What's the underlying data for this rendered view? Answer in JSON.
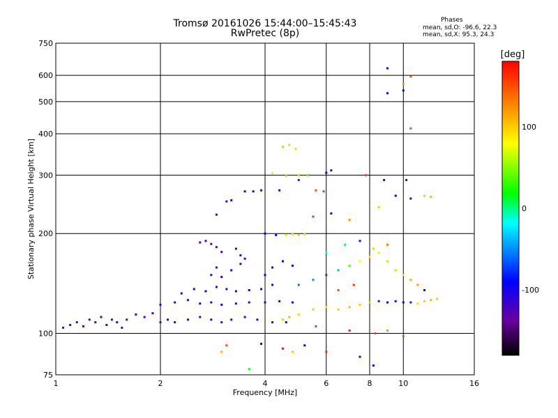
{
  "chart_data": {
    "type": "scatter",
    "title": "Tromsø 20161026 15:44:00–15:45:43",
    "subtitle": "RwPretec (8p)",
    "xlabel": "Frequency [MHz]",
    "ylabel": "Stationary phase Virtual Height [km]",
    "xscale": "log",
    "yscale": "log",
    "xlim": [
      1,
      16
    ],
    "ylim": [
      75,
      750
    ],
    "xticks": [
      1,
      2,
      4,
      6,
      8,
      10,
      16
    ],
    "yticks": [
      75,
      100,
      200,
      300,
      400,
      500,
      600,
      750
    ],
    "grid": true,
    "phase_stats": {
      "title": "Phases",
      "o": "mean, sd,O: -96.6, 22.3",
      "x": "mean, sd,X:  95.3, 24.3"
    },
    "colorbar": {
      "label": "[deg]",
      "range": [
        -180,
        180
      ],
      "ticks": [
        100,
        0,
        -100
      ],
      "colormap": [
        "#000000",
        "#6a00a0",
        "#0000ff",
        "#00ffff",
        "#00ff00",
        "#ffff00",
        "#ff8000",
        "#ff0000"
      ]
    },
    "series": [
      {
        "values": [
          {
            "x": 1.05,
            "y": 104,
            "phase": -125
          },
          {
            "x": 1.1,
            "y": 106,
            "phase": -125
          },
          {
            "x": 1.15,
            "y": 108,
            "phase": -122
          },
          {
            "x": 1.2,
            "y": 105,
            "phase": -125
          },
          {
            "x": 1.25,
            "y": 110,
            "phase": -125
          },
          {
            "x": 1.3,
            "y": 108,
            "phase": -120
          },
          {
            "x": 1.35,
            "y": 112,
            "phase": -125
          },
          {
            "x": 1.4,
            "y": 106,
            "phase": -122
          },
          {
            "x": 1.45,
            "y": 110,
            "phase": -125
          },
          {
            "x": 1.5,
            "y": 108,
            "phase": -120
          },
          {
            "x": 1.55,
            "y": 104,
            "phase": -122
          },
          {
            "x": 1.6,
            "y": 110,
            "phase": -125
          },
          {
            "x": 1.7,
            "y": 114,
            "phase": -120
          },
          {
            "x": 1.8,
            "y": 112,
            "phase": -122
          },
          {
            "x": 1.9,
            "y": 115,
            "phase": -115
          },
          {
            "x": 2.0,
            "y": 108,
            "phase": -120
          },
          {
            "x": 2.1,
            "y": 110,
            "phase": -120
          },
          {
            "x": 2.2,
            "y": 108,
            "phase": -118
          },
          {
            "x": 2.4,
            "y": 110,
            "phase": -118
          },
          {
            "x": 2.6,
            "y": 112,
            "phase": -115
          },
          {
            "x": 2.8,
            "y": 110,
            "phase": -112
          },
          {
            "x": 3.0,
            "y": 108,
            "phase": -115
          },
          {
            "x": 3.2,
            "y": 110,
            "phase": -112
          },
          {
            "x": 3.5,
            "y": 112,
            "phase": -110
          },
          {
            "x": 3.8,
            "y": 110,
            "phase": -108
          },
          {
            "x": 4.2,
            "y": 108,
            "phase": -105
          },
          {
            "x": 4.6,
            "y": 108,
            "phase": -100
          },
          {
            "x": 2.0,
            "y": 122,
            "phase": -115
          },
          {
            "x": 2.2,
            "y": 124,
            "phase": -110
          },
          {
            "x": 2.4,
            "y": 126,
            "phase": -108
          },
          {
            "x": 2.6,
            "y": 123,
            "phase": -105
          },
          {
            "x": 2.8,
            "y": 124,
            "phase": -110
          },
          {
            "x": 3.0,
            "y": 122,
            "phase": -105
          },
          {
            "x": 3.3,
            "y": 123,
            "phase": -108
          },
          {
            "x": 3.6,
            "y": 124,
            "phase": -110
          },
          {
            "x": 4.0,
            "y": 124,
            "phase": -105
          },
          {
            "x": 4.4,
            "y": 125,
            "phase": -100
          },
          {
            "x": 4.8,
            "y": 124,
            "phase": -95
          },
          {
            "x": 2.3,
            "y": 132,
            "phase": -100
          },
          {
            "x": 2.5,
            "y": 136,
            "phase": -95
          },
          {
            "x": 2.7,
            "y": 134,
            "phase": -98
          },
          {
            "x": 2.9,
            "y": 138,
            "phase": -100
          },
          {
            "x": 3.1,
            "y": 136,
            "phase": -98
          },
          {
            "x": 3.3,
            "y": 134,
            "phase": -100
          },
          {
            "x": 3.6,
            "y": 135,
            "phase": -95
          },
          {
            "x": 3.9,
            "y": 136,
            "phase": -95
          },
          {
            "x": 4.2,
            "y": 140,
            "phase": -95
          },
          {
            "x": 2.8,
            "y": 150,
            "phase": -115
          },
          {
            "x": 2.9,
            "y": 158,
            "phase": -115
          },
          {
            "x": 3.0,
            "y": 148,
            "phase": -112
          },
          {
            "x": 3.2,
            "y": 155,
            "phase": -112
          },
          {
            "x": 3.4,
            "y": 162,
            "phase": -115
          },
          {
            "x": 4.0,
            "y": 150,
            "phase": -100
          },
          {
            "x": 4.2,
            "y": 158,
            "phase": -100
          },
          {
            "x": 4.5,
            "y": 165,
            "phase": -95
          },
          {
            "x": 4.8,
            "y": 160,
            "phase": -95
          },
          {
            "x": 2.6,
            "y": 188,
            "phase": -125
          },
          {
            "x": 2.7,
            "y": 190,
            "phase": -125
          },
          {
            "x": 2.8,
            "y": 186,
            "phase": -122
          },
          {
            "x": 2.9,
            "y": 182,
            "phase": -125
          },
          {
            "x": 3.0,
            "y": 176,
            "phase": -120
          },
          {
            "x": 3.3,
            "y": 180,
            "phase": -120
          },
          {
            "x": 3.4,
            "y": 172,
            "phase": -118
          },
          {
            "x": 3.5,
            "y": 168,
            "phase": -118
          },
          {
            "x": 3.1,
            "y": 250,
            "phase": -115
          },
          {
            "x": 3.2,
            "y": 252,
            "phase": -115
          },
          {
            "x": 2.9,
            "y": 228,
            "phase": -120
          },
          {
            "x": 3.5,
            "y": 268,
            "phase": -100
          },
          {
            "x": 3.7,
            "y": 268,
            "phase": -100
          },
          {
            "x": 3.9,
            "y": 270,
            "phase": -105
          },
          {
            "x": 4.0,
            "y": 200,
            "phase": -105
          },
          {
            "x": 4.3,
            "y": 198,
            "phase": -95
          },
          {
            "x": 4.6,
            "y": 198,
            "phase": 90
          },
          {
            "x": 4.8,
            "y": 199,
            "phase": 95
          },
          {
            "x": 5.0,
            "y": 198,
            "phase": 100
          },
          {
            "x": 5.2,
            "y": 199,
            "phase": 95
          },
          {
            "x": 4.2,
            "y": 304,
            "phase": 90
          },
          {
            "x": 4.6,
            "y": 298,
            "phase": 95
          },
          {
            "x": 5.0,
            "y": 300,
            "phase": 60
          },
          {
            "x": 4.5,
            "y": 365,
            "phase": 105
          },
          {
            "x": 4.7,
            "y": 370,
            "phase": 100
          },
          {
            "x": 4.9,
            "y": 360,
            "phase": 95
          },
          {
            "x": 5.0,
            "y": 290,
            "phase": -80
          },
          {
            "x": 5.3,
            "y": 300,
            "phase": 40
          },
          {
            "x": 6.0,
            "y": 305,
            "phase": -90
          },
          {
            "x": 4.4,
            "y": 270,
            "phase": -90
          },
          {
            "x": 5.6,
            "y": 270,
            "phase": 150
          },
          {
            "x": 5.9,
            "y": 268,
            "phase": 160
          },
          {
            "x": 4.5,
            "y": 110,
            "phase": 100
          },
          {
            "x": 4.7,
            "y": 112,
            "phase": 110
          },
          {
            "x": 5.0,
            "y": 114,
            "phase": 95
          },
          {
            "x": 5.5,
            "y": 118,
            "phase": 100
          },
          {
            "x": 6.0,
            "y": 120,
            "phase": 90
          },
          {
            "x": 6.5,
            "y": 118,
            "phase": 100
          },
          {
            "x": 7.0,
            "y": 120,
            "phase": 110
          },
          {
            "x": 7.5,
            "y": 122,
            "phase": 100
          },
          {
            "x": 8.0,
            "y": 124,
            "phase": 100
          },
          {
            "x": 8.5,
            "y": 125,
            "phase": -80
          },
          {
            "x": 9.0,
            "y": 124,
            "phase": -90
          },
          {
            "x": 9.5,
            "y": 125,
            "phase": -85
          },
          {
            "x": 10.0,
            "y": 124,
            "phase": -90
          },
          {
            "x": 10.5,
            "y": 124,
            "phase": -80
          },
          {
            "x": 11.0,
            "y": 123,
            "phase": 90
          },
          {
            "x": 11.5,
            "y": 125,
            "phase": 100
          },
          {
            "x": 12.0,
            "y": 126,
            "phase": 110
          },
          {
            "x": 12.5,
            "y": 127,
            "phase": 100
          },
          {
            "x": 5.0,
            "y": 140,
            "phase": -60
          },
          {
            "x": 5.5,
            "y": 145,
            "phase": -50
          },
          {
            "x": 6.0,
            "y": 150,
            "phase": -70
          },
          {
            "x": 6.5,
            "y": 155,
            "phase": -40
          },
          {
            "x": 7.0,
            "y": 160,
            "phase": 40
          },
          {
            "x": 7.5,
            "y": 165,
            "phase": 80
          },
          {
            "x": 8.0,
            "y": 170,
            "phase": 90
          },
          {
            "x": 8.5,
            "y": 175,
            "phase": 70
          },
          {
            "x": 9.0,
            "y": 165,
            "phase": 60
          },
          {
            "x": 9.5,
            "y": 155,
            "phase": 100
          },
          {
            "x": 10.0,
            "y": 150,
            "phase": 90
          },
          {
            "x": 10.5,
            "y": 145,
            "phase": 110
          },
          {
            "x": 11.0,
            "y": 140,
            "phase": 120
          },
          {
            "x": 11.5,
            "y": 135,
            "phase": -100
          },
          {
            "x": 6.5,
            "y": 135,
            "phase": 150
          },
          {
            "x": 7.2,
            "y": 140,
            "phase": 160
          },
          {
            "x": 6.0,
            "y": 175,
            "phase": -20
          },
          {
            "x": 6.8,
            "y": 185,
            "phase": 10
          },
          {
            "x": 7.5,
            "y": 190,
            "phase": -100
          },
          {
            "x": 8.2,
            "y": 180,
            "phase": 100
          },
          {
            "x": 9.0,
            "y": 185,
            "phase": 130
          },
          {
            "x": 5.5,
            "y": 225,
            "phase": 160
          },
          {
            "x": 6.2,
            "y": 230,
            "phase": -100
          },
          {
            "x": 7.0,
            "y": 220,
            "phase": 120
          },
          {
            "x": 8.5,
            "y": 240,
            "phase": 100
          },
          {
            "x": 9.5,
            "y": 260,
            "phase": -90
          },
          {
            "x": 10.5,
            "y": 255,
            "phase": -100
          },
          {
            "x": 11.5,
            "y": 260,
            "phase": 100
          },
          {
            "x": 12.0,
            "y": 258,
            "phase": 110
          },
          {
            "x": 8.8,
            "y": 290,
            "phase": -100
          },
          {
            "x": 10.2,
            "y": 290,
            "phase": -120
          },
          {
            "x": 7.8,
            "y": 300,
            "phase": 150
          },
          {
            "x": 6.2,
            "y": 310,
            "phase": -110
          },
          {
            "x": 9.0,
            "y": 630,
            "phase": -100
          },
          {
            "x": 9.0,
            "y": 530,
            "phase": -110
          },
          {
            "x": 10.0,
            "y": 540,
            "phase": -90
          },
          {
            "x": 10.0,
            "y": 565,
            "phase": 120
          },
          {
            "x": 10.5,
            "y": 595,
            "phase": 150
          },
          {
            "x": 10.5,
            "y": 415,
            "phase": 150
          },
          {
            "x": 5.6,
            "y": 105,
            "phase": 160
          },
          {
            "x": 7.0,
            "y": 102,
            "phase": 170
          },
          {
            "x": 8.3,
            "y": 100,
            "phase": 150
          },
          {
            "x": 9.0,
            "y": 102,
            "phase": 120
          },
          {
            "x": 10.0,
            "y": 98,
            "phase": 150
          },
          {
            "x": 4.5,
            "y": 90,
            "phase": 170
          },
          {
            "x": 4.8,
            "y": 88,
            "phase": 100
          },
          {
            "x": 5.2,
            "y": 92,
            "phase": -90
          },
          {
            "x": 6.0,
            "y": 88,
            "phase": 160
          },
          {
            "x": 7.5,
            "y": 85,
            "phase": -100
          },
          {
            "x": 8.2,
            "y": 80,
            "phase": -90
          },
          {
            "x": 3.6,
            "y": 78,
            "phase": 20
          },
          {
            "x": 3.0,
            "y": 88,
            "phase": 110
          },
          {
            "x": 3.1,
            "y": 92,
            "phase": 150
          },
          {
            "x": 3.9,
            "y": 93,
            "phase": -100
          }
        ]
      }
    ]
  }
}
